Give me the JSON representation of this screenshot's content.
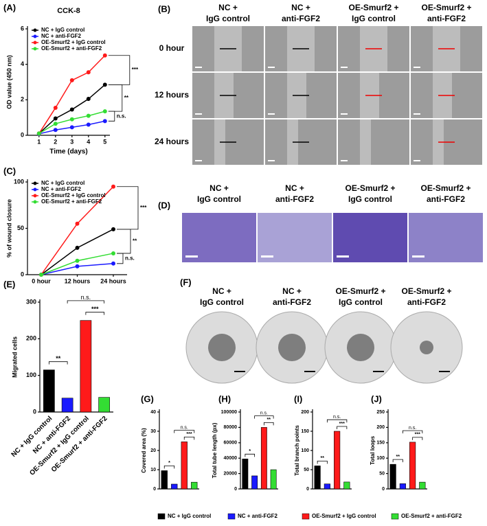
{
  "chart_data": [
    {
      "type": "line",
      "panel": "(A)",
      "title": "CCK-8",
      "xlabel": "Time (days)",
      "ylabel": "OD value (450 nm)",
      "x": [
        1,
        2,
        3,
        4,
        5
      ],
      "xlim": [
        0.3,
        5.3
      ],
      "xticks": [
        1,
        2,
        3,
        4,
        5
      ],
      "ylim": [
        0,
        6
      ],
      "yticks": [
        0,
        2,
        4,
        6
      ],
      "series": [
        {
          "name": "NC + IgG control",
          "color": "#000000",
          "values": [
            0.1,
            0.95,
            1.45,
            2.05,
            2.85
          ]
        },
        {
          "name": "NC + anti-FGF2",
          "color": "#1a1aff",
          "values": [
            0.08,
            0.3,
            0.45,
            0.6,
            0.8
          ]
        },
        {
          "name": "OE-Smurf2 + IgG control",
          "color": "#ff1a1a",
          "values": [
            0.1,
            1.55,
            3.1,
            3.55,
            4.5
          ]
        },
        {
          "name": "OE-Smurf2 + anti-FGF2",
          "color": "#33dd33",
          "values": [
            0.1,
            0.65,
            0.9,
            1.1,
            1.35
          ]
        }
      ],
      "annotations": [
        "***",
        "**",
        "n.s."
      ]
    },
    {
      "type": "line",
      "panel": "(C)",
      "ylabel": "% of wound closure",
      "categories": [
        "0 hour",
        "12 hours",
        "24 hours"
      ],
      "ylim": [
        0,
        100
      ],
      "yticks": [
        0,
        50,
        100
      ],
      "series": [
        {
          "name": "NC + IgG control",
          "color": "#000000",
          "values": [
            0,
            29,
            49
          ]
        },
        {
          "name": "NC + anti-FGF2",
          "color": "#1a1aff",
          "values": [
            0,
            9,
            12
          ]
        },
        {
          "name": "OE-Smurf2 + IgG control",
          "color": "#ff1a1a",
          "values": [
            0,
            55,
            95
          ]
        },
        {
          "name": "OE-Smurf2 + anti-FGF2",
          "color": "#33dd33",
          "values": [
            0,
            15,
            23
          ]
        }
      ],
      "annotations": [
        "***",
        "**",
        "n.s."
      ]
    },
    {
      "type": "bar",
      "panel": "(E)",
      "ylabel": "Migrated cells",
      "categories": [
        "NC + IgG control",
        "NC + anti-FGF2",
        "OE-Smurf2 + IgG control",
        "OE-Smurf2 + anti-FGF2"
      ],
      "values": [
        115,
        38,
        250,
        40
      ],
      "colors": [
        "#000000",
        "#1a1aff",
        "#ff1a1a",
        "#33dd33"
      ],
      "ylim": [
        0,
        300
      ],
      "yticks": [
        0,
        100,
        200,
        300
      ],
      "annotations": [
        "**",
        "n.s.",
        "***"
      ]
    },
    {
      "type": "bar",
      "panel": "(G)",
      "ylabel": "Covered area (%)",
      "categories": [
        "NC + IgG control",
        "NC + anti-FGF2",
        "OE-Smurf2 + IgG control",
        "OE-Smurf2 + anti-FGF2"
      ],
      "values": [
        9.5,
        2.5,
        24.5,
        3.5
      ],
      "colors": [
        "#000000",
        "#1a1aff",
        "#ff1a1a",
        "#33dd33"
      ],
      "ylim": [
        0,
        40
      ],
      "yticks": [
        0,
        10,
        20,
        30,
        40
      ],
      "annotations": [
        "*",
        "n.s.",
        "***"
      ]
    },
    {
      "type": "bar",
      "panel": "(H)",
      "ylabel": "Total tube length (px)",
      "values": [
        39000,
        17000,
        80000,
        25000
      ],
      "colors": [
        "#000000",
        "#1a1aff",
        "#ff1a1a",
        "#33dd33"
      ],
      "ylim": [
        0,
        100000
      ],
      "yticks": [
        0,
        20000,
        40000,
        60000,
        80000,
        100000
      ],
      "annotations": [
        "*",
        "n.s.",
        "**"
      ]
    },
    {
      "type": "bar",
      "panel": "(I)",
      "ylabel": "Total branch points",
      "values": [
        60,
        13,
        150,
        18
      ],
      "colors": [
        "#000000",
        "#1a1aff",
        "#ff1a1a",
        "#33dd33"
      ],
      "ylim": [
        0,
        200
      ],
      "yticks": [
        0,
        50,
        100,
        150,
        200
      ],
      "annotations": [
        "**",
        "n.s.",
        "***"
      ]
    },
    {
      "type": "bar",
      "panel": "(J)",
      "ylabel": "Total loops",
      "values": [
        80,
        17,
        152,
        22
      ],
      "colors": [
        "#000000",
        "#1a1aff",
        "#ff1a1a",
        "#33dd33"
      ],
      "ylim": [
        0,
        250
      ],
      "yticks": [
        0,
        50,
        100,
        150,
        200,
        250
      ],
      "annotations": [
        "**",
        "n.s.",
        "***"
      ]
    }
  ],
  "image_panels": [
    {
      "label": "(B)",
      "columns": [
        [
          "NC +",
          "IgG control"
        ],
        [
          "NC +",
          "anti-FGF2"
        ],
        [
          "OE-Smurf2 +",
          "IgG control"
        ],
        [
          "OE-Smurf2 +",
          "anti-FGF2"
        ]
      ],
      "rows": [
        "0 hour",
        "12 hours",
        "24 hours"
      ]
    },
    {
      "label": "(D)",
      "columns": [
        [
          "NC +",
          "IgG control"
        ],
        [
          "NC +",
          "anti-FGF2"
        ],
        [
          "OE-Smurf2 +",
          "IgG control"
        ],
        [
          "OE-Smurf2 +",
          "anti-FGF2"
        ]
      ]
    },
    {
      "label": "(F)",
      "columns": [
        [
          "NC +",
          "IgG control"
        ],
        [
          "NC +",
          "anti-FGF2"
        ],
        [
          "OE-Smurf2 +",
          "IgG control"
        ],
        [
          "OE-Smurf2 +",
          "anti-FGF2"
        ]
      ]
    }
  ]
}
